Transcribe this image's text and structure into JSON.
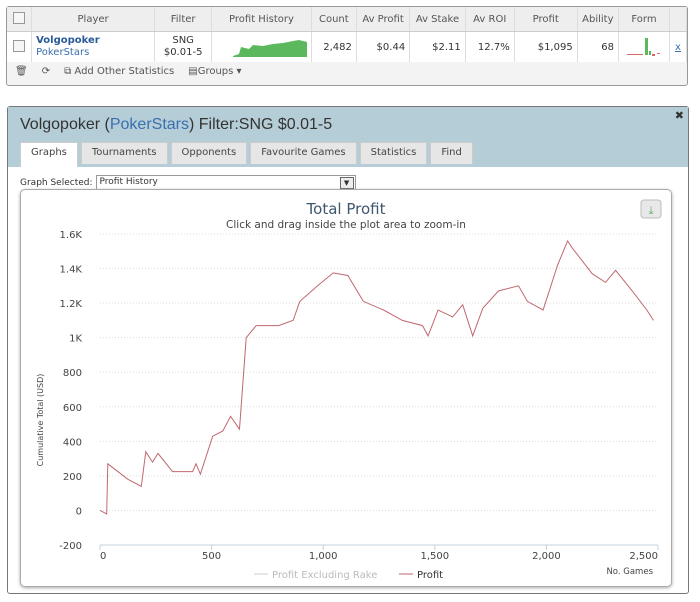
{
  "grid": {
    "headers": [
      "Player",
      "Filter",
      "Profit History",
      "Count",
      "Av Profit",
      "Av Stake",
      "Av ROI",
      "Profit",
      "Ability",
      "Form"
    ],
    "row": {
      "player": "Volgopoker",
      "site": "PokerStars",
      "filter1": "SNG",
      "filter2": "$0.01-5",
      "count": "2,482",
      "av_profit": "$0.44",
      "av_stake": "$2.11",
      "av_roi": "12.7%",
      "profit": "$1,095",
      "ability": "68",
      "remove": "x"
    },
    "toolbar": {
      "add": "Add Other Statistics",
      "groups": "Groups"
    }
  },
  "dialog": {
    "player": "Volgopoker",
    "site": "PokerStars",
    "filter": "Filter:SNG $0.01-5",
    "tabs": [
      "Graphs",
      "Tournaments",
      "Opponents",
      "Favourite Games",
      "Statistics",
      "Find"
    ],
    "graph_label": "Graph Selected:",
    "graph_value": "Profit History"
  },
  "colors": {
    "profit": "#c0686e",
    "header": "#b5cdd6",
    "spark": "#5cb85c"
  },
  "chart_data": {
    "type": "line",
    "title": "Total Profit",
    "subtitle": "Click and drag inside the plot area to zoom-in",
    "xlabel": "No. Games",
    "ylabel": "Cumulative Total (USD)",
    "xlim": [
      0,
      2500
    ],
    "ylim": [
      -200,
      1600
    ],
    "xticks": [
      "0",
      "500",
      "1,000",
      "1,500",
      "2,000",
      "2,500"
    ],
    "xtick_values": [
      0,
      500,
      1000,
      1500,
      2000,
      2500
    ],
    "yticks": [
      "-200",
      "0",
      "200",
      "400",
      "600",
      "800",
      "1K",
      "1.2K",
      "1.4K",
      "1.6K"
    ],
    "ytick_values": [
      -200,
      0,
      200,
      400,
      600,
      800,
      1000,
      1200,
      1400,
      1600
    ],
    "legend": [
      "Profit Excluding Rake",
      "Profit"
    ],
    "series": [
      {
        "name": "Profit",
        "x": [
          0,
          30,
          35,
          125,
          185,
          205,
          235,
          260,
          325,
          415,
          430,
          450,
          505,
          550,
          585,
          625,
          655,
          700,
          800,
          865,
          895,
          975,
          1045,
          1110,
          1180,
          1270,
          1355,
          1445,
          1470,
          1515,
          1580,
          1625,
          1670,
          1715,
          1785,
          1875,
          1915,
          1985,
          2050,
          2095,
          2115,
          2205,
          2265,
          2310,
          2385,
          2450,
          2480
        ],
        "y": [
          0,
          -20,
          270,
          180,
          140,
          340,
          280,
          330,
          225,
          225,
          270,
          210,
          430,
          460,
          545,
          470,
          1000,
          1070,
          1070,
          1100,
          1210,
          1300,
          1375,
          1360,
          1210,
          1160,
          1100,
          1070,
          1010,
          1160,
          1120,
          1190,
          1010,
          1170,
          1270,
          1300,
          1210,
          1160,
          1420,
          1560,
          1520,
          1370,
          1320,
          1390,
          1270,
          1160,
          1100
        ]
      }
    ]
  }
}
